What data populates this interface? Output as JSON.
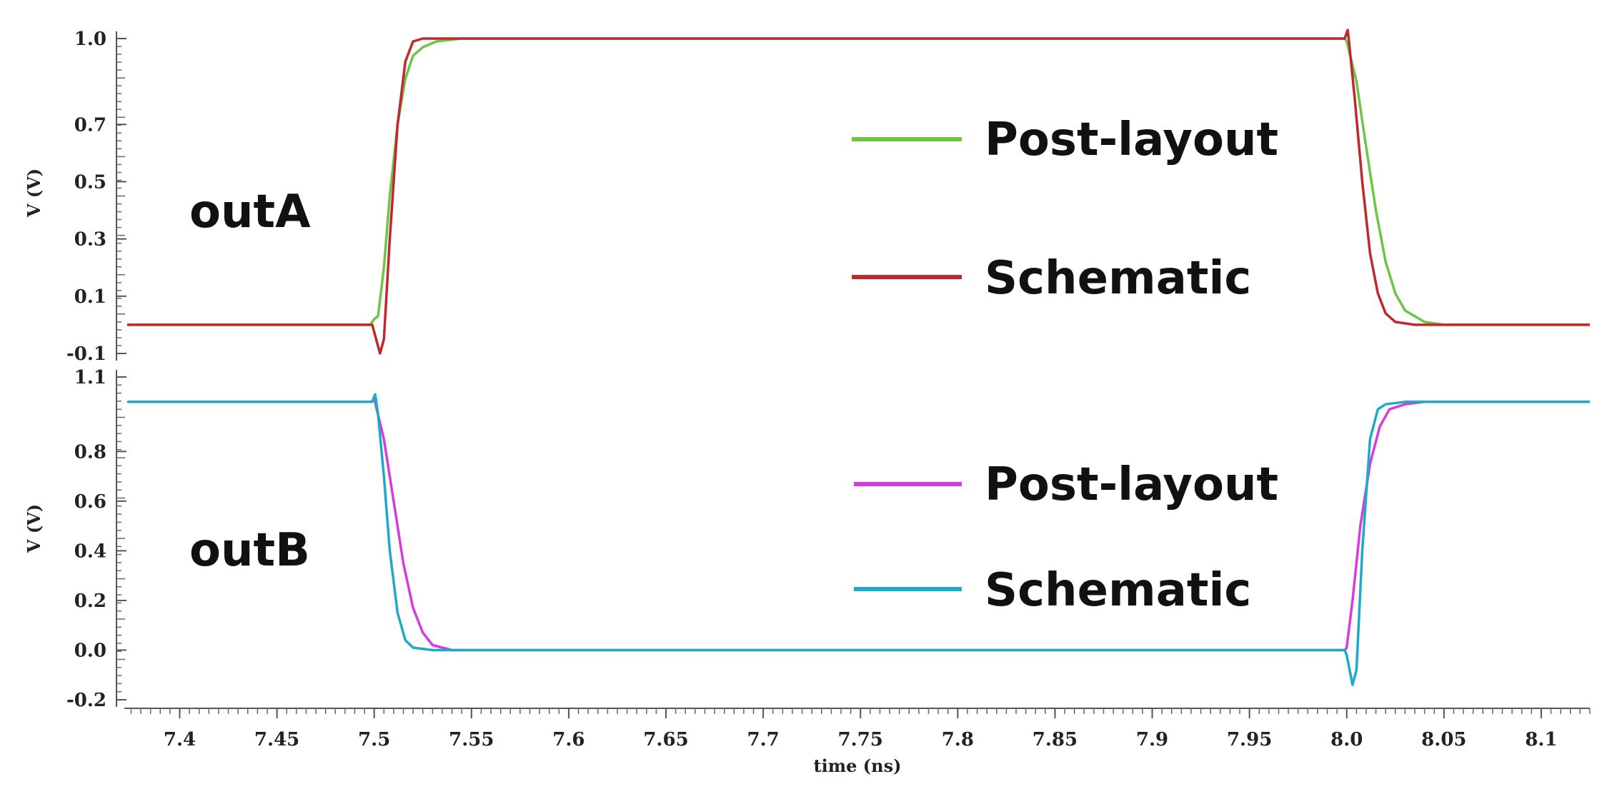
{
  "chart_data": [
    {
      "type": "line",
      "panel_label": "outA",
      "ylabel": "V (V)",
      "ylim": [
        -0.1,
        1.0
      ],
      "yticks": [
        1.0,
        0.7,
        0.5,
        0.3,
        0.1,
        -0.1
      ],
      "ytick_labels": [
        "1.0",
        "0.7",
        "0.5",
        "0.3",
        "0.1",
        "-0.1"
      ],
      "legend_placement": "right",
      "series": [
        {
          "name": "Post-layout",
          "color": "#6cc644",
          "points": [
            [
              7.373,
              0.0
            ],
            [
              7.498,
              0.0
            ],
            [
              7.5,
              0.02
            ],
            [
              7.502,
              0.03
            ],
            [
              7.505,
              0.2
            ],
            [
              7.508,
              0.45
            ],
            [
              7.512,
              0.7
            ],
            [
              7.516,
              0.86
            ],
            [
              7.52,
              0.94
            ],
            [
              7.525,
              0.97
            ],
            [
              7.532,
              0.99
            ],
            [
              7.545,
              1.0
            ],
            [
              7.999,
              1.0
            ],
            [
              8.0,
              0.99
            ],
            [
              8.005,
              0.85
            ],
            [
              8.01,
              0.62
            ],
            [
              8.015,
              0.4
            ],
            [
              8.02,
              0.22
            ],
            [
              8.025,
              0.11
            ],
            [
              8.03,
              0.05
            ],
            [
              8.04,
              0.01
            ],
            [
              8.05,
              0.0
            ],
            [
              8.125,
              0.0
            ]
          ]
        },
        {
          "name": "Schematic",
          "color": "#c0282d",
          "points": [
            [
              7.373,
              0.0
            ],
            [
              7.499,
              0.0
            ],
            [
              7.501,
              -0.05
            ],
            [
              7.503,
              -0.1
            ],
            [
              7.505,
              -0.05
            ],
            [
              7.508,
              0.3
            ],
            [
              7.512,
              0.7
            ],
            [
              7.516,
              0.92
            ],
            [
              7.52,
              0.99
            ],
            [
              7.525,
              1.0
            ],
            [
              7.999,
              1.0
            ],
            [
              8.0005,
              1.03
            ],
            [
              8.001,
              1.0
            ],
            [
              8.004,
              0.8
            ],
            [
              8.008,
              0.5
            ],
            [
              8.012,
              0.25
            ],
            [
              8.016,
              0.11
            ],
            [
              8.02,
              0.04
            ],
            [
              8.025,
              0.01
            ],
            [
              8.035,
              0.0
            ],
            [
              8.125,
              0.0
            ]
          ]
        }
      ]
    },
    {
      "type": "line",
      "panel_label": "outB",
      "xlabel": "time (ns)",
      "ylabel": "V (V)",
      "xlim": [
        7.373,
        8.125
      ],
      "xticks": [
        7.4,
        7.45,
        7.5,
        7.55,
        7.6,
        7.65,
        7.7,
        7.75,
        7.8,
        7.85,
        7.9,
        7.95,
        8.0,
        8.05,
        8.1
      ],
      "xtick_labels": [
        "7.4",
        "7.45",
        "7.5",
        "7.55",
        "7.6",
        "7.65",
        "7.7",
        "7.75",
        "7.8",
        "7.85",
        "7.9",
        "7.95",
        "8.0",
        "8.05",
        "8.1"
      ],
      "ylim": [
        -0.2,
        1.1
      ],
      "yticks": [
        1.1,
        0.8,
        0.6,
        0.4,
        0.2,
        0.0,
        -0.2
      ],
      "ytick_labels": [
        "1.1",
        "0.8",
        "0.6",
        "0.4",
        "0.2",
        "0.0",
        "-0.2"
      ],
      "legend_placement": "right",
      "series": [
        {
          "name": "Post-layout",
          "color": "#d63be0",
          "points": [
            [
              7.373,
              1.0
            ],
            [
              7.499,
              1.0
            ],
            [
              7.5,
              1.02
            ],
            [
              7.501,
              0.98
            ],
            [
              7.505,
              0.85
            ],
            [
              7.51,
              0.6
            ],
            [
              7.515,
              0.35
            ],
            [
              7.52,
              0.17
            ],
            [
              7.525,
              0.07
            ],
            [
              7.53,
              0.02
            ],
            [
              7.54,
              0.0
            ],
            [
              7.999,
              0.0
            ],
            [
              8.0,
              0.01
            ],
            [
              8.003,
              0.2
            ],
            [
              8.007,
              0.5
            ],
            [
              8.012,
              0.75
            ],
            [
              8.017,
              0.9
            ],
            [
              8.022,
              0.97
            ],
            [
              8.03,
              0.99
            ],
            [
              8.04,
              1.0
            ],
            [
              8.125,
              1.0
            ]
          ]
        },
        {
          "name": "Schematic",
          "color": "#1fa9c9",
          "points": [
            [
              7.373,
              1.0
            ],
            [
              7.499,
              1.0
            ],
            [
              7.5005,
              1.03
            ],
            [
              7.502,
              0.95
            ],
            [
              7.505,
              0.7
            ],
            [
              7.508,
              0.4
            ],
            [
              7.512,
              0.15
            ],
            [
              7.516,
              0.04
            ],
            [
              7.52,
              0.01
            ],
            [
              7.53,
              0.0
            ],
            [
              7.999,
              0.0
            ],
            [
              8.0,
              -0.02
            ],
            [
              8.002,
              -0.1
            ],
            [
              8.003,
              -0.14
            ],
            [
              8.005,
              -0.08
            ],
            [
              8.008,
              0.4
            ],
            [
              8.012,
              0.85
            ],
            [
              8.016,
              0.97
            ],
            [
              8.02,
              0.99
            ],
            [
              8.03,
              1.0
            ],
            [
              8.125,
              1.0
            ]
          ]
        }
      ]
    }
  ]
}
